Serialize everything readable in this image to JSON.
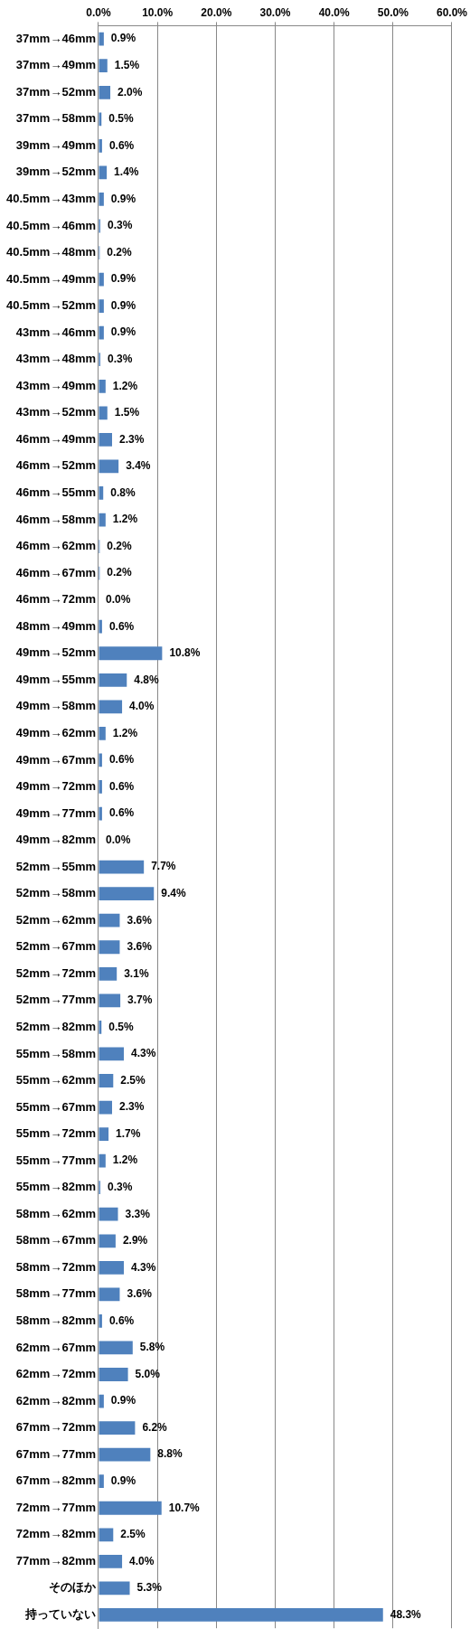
{
  "chart_data": {
    "type": "bar",
    "orientation": "horizontal",
    "color": "#4f81bd",
    "grid": "x",
    "legend": false,
    "categories": [
      "37mm→46mm",
      "37mm→49mm",
      "37mm→52mm",
      "37mm→58mm",
      "39mm→49mm",
      "39mm→52mm",
      "40.5mm→43mm",
      "40.5mm→46mm",
      "40.5mm→48mm",
      "40.5mm→49mm",
      "40.5mm→52mm",
      "43mm→46mm",
      "43mm→48mm",
      "43mm→49mm",
      "43mm→52mm",
      "46mm→49mm",
      "46mm→52mm",
      "46mm→55mm",
      "46mm→58mm",
      "46mm→62mm",
      "46mm→67mm",
      "46mm→72mm",
      "48mm→49mm",
      "49mm→52mm",
      "49mm→55mm",
      "49mm→58mm",
      "49mm→62mm",
      "49mm→67mm",
      "49mm→72mm",
      "49mm→77mm",
      "49mm→82mm",
      "52mm→55mm",
      "52mm→58mm",
      "52mm→62mm",
      "52mm→67mm",
      "52mm→72mm",
      "52mm→77mm",
      "52mm→82mm",
      "55mm→58mm",
      "55mm→62mm",
      "55mm→67mm",
      "55mm→72mm",
      "55mm→77mm",
      "55mm→82mm",
      "58mm→62mm",
      "58mm→67mm",
      "58mm→72mm",
      "58mm→77mm",
      "58mm→82mm",
      "62mm→67mm",
      "62mm→72mm",
      "62mm→82mm",
      "67mm→72mm",
      "67mm→77mm",
      "67mm→82mm",
      "72mm→77mm",
      "72mm→82mm",
      "77mm→82mm",
      "そのほか",
      "持っていない"
    ],
    "values": [
      0.9,
      1.5,
      2.0,
      0.5,
      0.6,
      1.4,
      0.9,
      0.3,
      0.2,
      0.9,
      0.9,
      0.9,
      0.3,
      1.2,
      1.5,
      2.3,
      3.4,
      0.8,
      1.2,
      0.2,
      0.2,
      0.0,
      0.6,
      10.8,
      4.8,
      4.0,
      1.2,
      0.6,
      0.6,
      0.6,
      0.0,
      7.7,
      9.4,
      3.6,
      3.6,
      3.1,
      3.7,
      0.5,
      4.3,
      2.5,
      2.3,
      1.7,
      1.2,
      0.3,
      3.3,
      2.9,
      4.3,
      3.6,
      0.6,
      5.8,
      5.0,
      0.9,
      6.2,
      8.8,
      0.9,
      10.7,
      2.5,
      4.0,
      5.3,
      48.3
    ],
    "value_labels": [
      "0.9%",
      "1.5%",
      "2.0%",
      "0.5%",
      "0.6%",
      "1.4%",
      "0.9%",
      "0.3%",
      "0.2%",
      "0.9%",
      "0.9%",
      "0.9%",
      "0.3%",
      "1.2%",
      "1.5%",
      "2.3%",
      "3.4%",
      "0.8%",
      "1.2%",
      "0.2%",
      "0.2%",
      "0.0%",
      "0.6%",
      "10.8%",
      "4.8%",
      "4.0%",
      "1.2%",
      "0.6%",
      "0.6%",
      "0.6%",
      "0.0%",
      "7.7%",
      "9.4%",
      "3.6%",
      "3.6%",
      "3.1%",
      "3.7%",
      "0.5%",
      "4.3%",
      "2.5%",
      "2.3%",
      "1.7%",
      "1.2%",
      "0.3%",
      "3.3%",
      "2.9%",
      "4.3%",
      "3.6%",
      "0.6%",
      "5.8%",
      "5.0%",
      "0.9%",
      "6.2%",
      "8.8%",
      "0.9%",
      "10.7%",
      "2.5%",
      "4.0%",
      "5.3%",
      "48.3%"
    ],
    "xlim": [
      0,
      60
    ],
    "xticks": [
      {
        "value": 0,
        "label": "0.0%"
      },
      {
        "value": 10,
        "label": "10.0%"
      },
      {
        "value": 20,
        "label": "20.0%"
      },
      {
        "value": 30,
        "label": "30.0%"
      },
      {
        "value": 40,
        "label": "40.0%"
      },
      {
        "value": 50,
        "label": "50.0%"
      },
      {
        "value": 60,
        "label": "60.0%"
      }
    ]
  }
}
